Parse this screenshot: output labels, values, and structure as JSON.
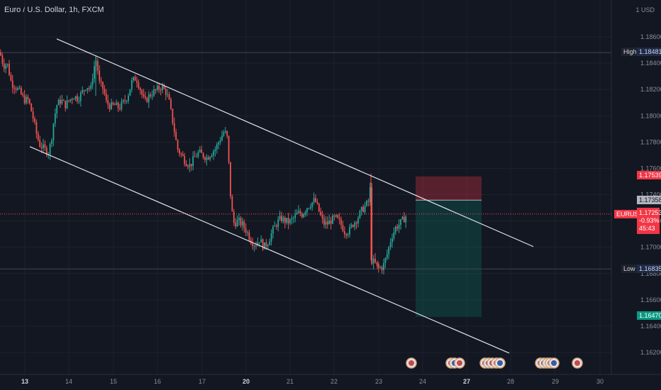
{
  "header": {
    "symbol_title": "Euro / U.S. Dollar, 1h, FXCM"
  },
  "axis": {
    "currency_label": "1 USD"
  },
  "colors": {
    "bg": "#131722",
    "grid": "#1e222d",
    "up": "#26a69a",
    "down": "#ef5350",
    "line": "#e0e3eb"
  },
  "tags": {
    "high_label": "High",
    "high_value": "1.18481",
    "low_label": "Low",
    "low_value": "1.16835",
    "stop_value": "1.17539",
    "entry_value": "1.17358",
    "target_value": "1.16470",
    "symbol_label": "EURUSD",
    "last_price": "1.17253",
    "change": "-0.93%",
    "countdown": "45:43"
  },
  "chart_data": {
    "type": "candlestick",
    "title": "Euro / U.S. Dollar, 1h, FXCM",
    "y_ticks": [
      "1.18600",
      "1.18400",
      "1.18200",
      "1.18000",
      "1.17800",
      "1.17600",
      "1.17400",
      "1.17200",
      "1.17000",
      "1.16800",
      "1.16600",
      "1.16400",
      "1.16200"
    ],
    "y_range": [
      1.161,
      1.189
    ],
    "x_ticks": [
      {
        "label": "13",
        "bold": true
      },
      {
        "label": "14",
        "bold": false
      },
      {
        "label": "15",
        "bold": false
      },
      {
        "label": "16",
        "bold": false
      },
      {
        "label": "17",
        "bold": false
      },
      {
        "label": "20",
        "bold": true
      },
      {
        "label": "21",
        "bold": false
      },
      {
        "label": "22",
        "bold": false
      },
      {
        "label": "23",
        "bold": false
      },
      {
        "label": "24",
        "bold": false
      },
      {
        "label": "27",
        "bold": true
      },
      {
        "label": "28",
        "bold": false
      },
      {
        "label": "29",
        "bold": false
      },
      {
        "label": "30",
        "bold": false
      }
    ],
    "price_path": [
      [
        0,
        1.1848
      ],
      [
        5,
        1.1838
      ],
      [
        10,
        1.184
      ],
      [
        16,
        1.1825
      ],
      [
        22,
        1.1822
      ],
      [
        28,
        1.1818
      ],
      [
        34,
        1.1812
      ],
      [
        40,
        1.1812
      ],
      [
        46,
        1.18
      ],
      [
        52,
        1.1785
      ],
      [
        56,
        1.1778
      ],
      [
        62,
        1.1775
      ],
      [
        68,
        1.1772
      ],
      [
        72,
        1.178
      ],
      [
        76,
        1.1797
      ],
      [
        80,
        1.1808
      ],
      [
        86,
        1.1812
      ],
      [
        92,
        1.1808
      ],
      [
        98,
        1.1812
      ],
      [
        104,
        1.1815
      ],
      [
        110,
        1.1813
      ],
      [
        116,
        1.1818
      ],
      [
        122,
        1.1823
      ],
      [
        128,
        1.182
      ],
      [
        132,
        1.1836
      ],
      [
        136,
        1.1843
      ],
      [
        140,
        1.1825
      ],
      [
        146,
        1.182
      ],
      [
        150,
        1.181
      ],
      [
        156,
        1.1807
      ],
      [
        162,
        1.1808
      ],
      [
        168,
        1.1806
      ],
      [
        174,
        1.181
      ],
      [
        180,
        1.1815
      ],
      [
        186,
        1.1826
      ],
      [
        192,
        1.1829
      ],
      [
        198,
        1.182
      ],
      [
        204,
        1.181
      ],
      [
        210,
        1.1815
      ],
      [
        216,
        1.1818
      ],
      [
        222,
        1.182
      ],
      [
        228,
        1.1822
      ],
      [
        234,
        1.1818
      ],
      [
        238,
        1.1812
      ],
      [
        242,
        1.18
      ],
      [
        246,
        1.1788
      ],
      [
        250,
        1.1775
      ],
      [
        256,
        1.177
      ],
      [
        262,
        1.1765
      ],
      [
        268,
        1.1762
      ],
      [
        274,
        1.1768
      ],
      [
        280,
        1.1772
      ],
      [
        286,
        1.177
      ],
      [
        292,
        1.1768
      ],
      [
        298,
        1.1772
      ],
      [
        304,
        1.1775
      ],
      [
        310,
        1.1782
      ],
      [
        316,
        1.1788
      ],
      [
        320,
        1.1785
      ],
      [
        323,
        1.176
      ],
      [
        326,
        1.173
      ],
      [
        330,
        1.1718
      ],
      [
        336,
        1.172
      ],
      [
        342,
        1.1717
      ],
      [
        348,
        1.1712
      ],
      [
        354,
        1.1705
      ],
      [
        360,
        1.1702
      ],
      [
        366,
        1.1706
      ],
      [
        372,
        1.17
      ],
      [
        378,
        1.1704
      ],
      [
        384,
        1.1712
      ],
      [
        390,
        1.1718
      ],
      [
        396,
        1.1722
      ],
      [
        402,
        1.172
      ],
      [
        408,
        1.1719
      ],
      [
        414,
        1.1722
      ],
      [
        420,
        1.1726
      ],
      [
        426,
        1.1725
      ],
      [
        432,
        1.173
      ],
      [
        438,
        1.1733
      ],
      [
        444,
        1.1736
      ],
      [
        450,
        1.1727
      ],
      [
        456,
        1.1718
      ],
      [
        462,
        1.1718
      ],
      [
        468,
        1.1721
      ],
      [
        474,
        1.1722
      ],
      [
        480,
        1.1718
      ],
      [
        486,
        1.1712
      ],
      [
        492,
        1.1712
      ],
      [
        498,
        1.1718
      ],
      [
        504,
        1.1722
      ],
      [
        510,
        1.1728
      ],
      [
        516,
        1.1732
      ],
      [
        520,
        1.1735
      ],
      [
        522,
        1.1745
      ],
      [
        524,
        1.169
      ],
      [
        528,
        1.1688
      ],
      [
        534,
        1.1684
      ],
      [
        540,
        1.1685
      ],
      [
        546,
        1.1695
      ],
      [
        552,
        1.1708
      ],
      [
        558,
        1.1715
      ],
      [
        564,
        1.1718
      ],
      [
        570,
        1.1722
      ],
      [
        574,
        1.1725
      ]
    ],
    "channel_upper": [
      [
        80,
        1.18585
      ],
      [
        752,
        1.17005
      ]
    ],
    "channel_lower": [
      [
        42,
        1.17765
      ],
      [
        718,
        1.16195
      ]
    ],
    "position": {
      "entry": 1.17358,
      "stop": 1.17539,
      "target": 1.1647,
      "x_from": 586,
      "x_to": 679
    },
    "high": 1.18481,
    "low": 1.16835,
    "last": 1.17253,
    "grid": true,
    "event_icons": [
      {
        "x": 580,
        "count": 1
      },
      {
        "x": 636,
        "count": 2
      },
      {
        "x": 648,
        "count": 1
      },
      {
        "x": 684,
        "count": 3
      },
      {
        "x": 700,
        "count": 2
      },
      {
        "x": 762,
        "count": 3
      },
      {
        "x": 776,
        "count": 2
      },
      {
        "x": 814,
        "count": 1
      }
    ]
  }
}
